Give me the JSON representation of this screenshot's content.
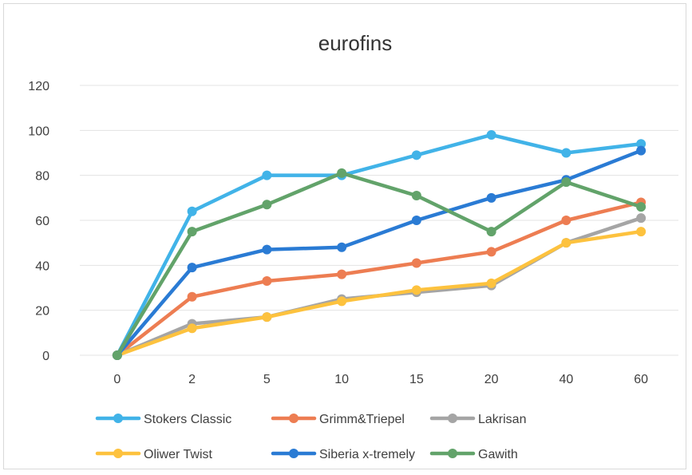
{
  "chart_data": {
    "type": "line",
    "title": "eurofins",
    "xlabel": "",
    "ylabel": "",
    "categories": [
      "0",
      "2",
      "5",
      "10",
      "15",
      "20",
      "40",
      "60"
    ],
    "ylim": [
      0,
      120
    ],
    "yticks": [
      0,
      20,
      40,
      60,
      80,
      100,
      120
    ],
    "grid": true,
    "legend_position": "bottom",
    "series": [
      {
        "name": "Stokers Classic",
        "color": "#41b3e8",
        "values": [
          0,
          64,
          80,
          80,
          89,
          98,
          90,
          94
        ]
      },
      {
        "name": "Grimm&Triepel",
        "color": "#ed7d52",
        "values": [
          0,
          26,
          33,
          36,
          41,
          46,
          60,
          68
        ]
      },
      {
        "name": "Lakrisan",
        "color": "#a5a5a5",
        "values": [
          0,
          14,
          17,
          25,
          28,
          31,
          50,
          61
        ]
      },
      {
        "name": "Oliwer Twist",
        "color": "#fdc23e",
        "values": [
          0,
          12,
          17,
          24,
          29,
          32,
          50,
          55
        ]
      },
      {
        "name": "Siberia x-tremely",
        "color": "#2a7bd4",
        "values": [
          0,
          39,
          47,
          48,
          60,
          70,
          78,
          91
        ]
      },
      {
        "name": "Gawith",
        "color": "#62a36a",
        "values": [
          0,
          55,
          67,
          81,
          71,
          55,
          77,
          66
        ]
      }
    ]
  }
}
